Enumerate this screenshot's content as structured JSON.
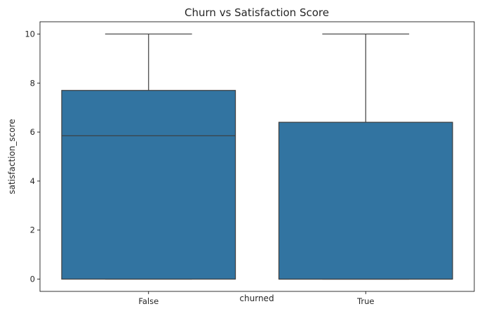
{
  "chart_data": {
    "type": "box",
    "title": "Churn vs Satisfaction Score",
    "xlabel": "churned",
    "ylabel": "satisfaction_score",
    "categories": [
      "False",
      "True"
    ],
    "boxes": [
      {
        "category": "False",
        "min": 0,
        "q1": 0,
        "median": 5.85,
        "q3": 7.7,
        "max": 10
      },
      {
        "category": "True",
        "min": 0,
        "q1": 0,
        "median": 0,
        "q3": 6.4,
        "max": 10
      }
    ],
    "ylim": [
      -0.5,
      10.5
    ],
    "yticks": [
      "0",
      "2",
      "4",
      "6",
      "8",
      "10"
    ],
    "grid": false,
    "legend": "none",
    "colors": {
      "box_fill": "#3274a1",
      "line": "#3d3d3d",
      "axis": "#000000"
    }
  }
}
